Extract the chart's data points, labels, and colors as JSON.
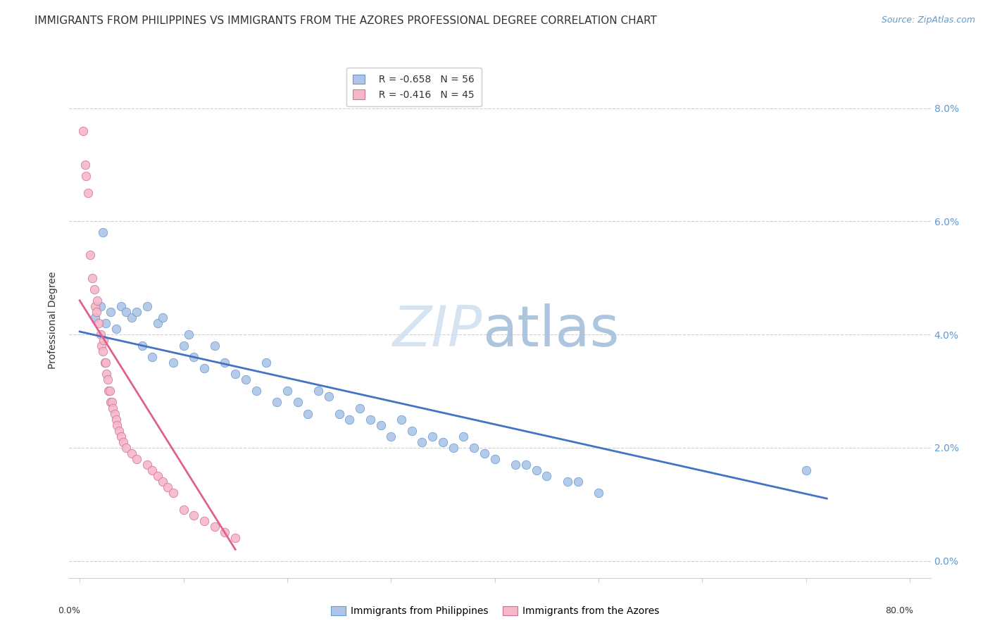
{
  "title": "IMMIGRANTS FROM PHILIPPINES VS IMMIGRANTS FROM THE AZORES PROFESSIONAL DEGREE CORRELATION CHART",
  "source": "Source: ZipAtlas.com",
  "ylabel": "Professional Degree",
  "legend_blue_r": "R = -0.658",
  "legend_blue_n": "N = 56",
  "legend_pink_r": "R = -0.416",
  "legend_pink_n": "N = 45",
  "legend_label_blue": "Immigrants from Philippines",
  "legend_label_pink": "Immigrants from the Azores",
  "blue_scatter_x": [
    1.5,
    2.0,
    2.2,
    2.5,
    3.0,
    3.5,
    4.0,
    4.5,
    5.0,
    5.5,
    6.0,
    6.5,
    7.0,
    7.5,
    8.0,
    9.0,
    10.0,
    10.5,
    11.0,
    12.0,
    13.0,
    14.0,
    15.0,
    16.0,
    17.0,
    18.0,
    19.0,
    20.0,
    21.0,
    22.0,
    23.0,
    24.0,
    25.0,
    26.0,
    27.0,
    28.0,
    29.0,
    30.0,
    31.0,
    32.0,
    33.0,
    34.0,
    35.0,
    36.0,
    37.0,
    38.0,
    39.0,
    40.0,
    42.0,
    43.0,
    44.0,
    45.0,
    47.0,
    48.0,
    50.0,
    70.0
  ],
  "blue_scatter_y": [
    4.3,
    4.5,
    5.8,
    4.2,
    4.4,
    4.1,
    4.5,
    4.4,
    4.3,
    4.4,
    3.8,
    4.5,
    3.6,
    4.2,
    4.3,
    3.5,
    3.8,
    4.0,
    3.6,
    3.4,
    3.8,
    3.5,
    3.3,
    3.2,
    3.0,
    3.5,
    2.8,
    3.0,
    2.8,
    2.6,
    3.0,
    2.9,
    2.6,
    2.5,
    2.7,
    2.5,
    2.4,
    2.2,
    2.5,
    2.3,
    2.1,
    2.2,
    2.1,
    2.0,
    2.2,
    2.0,
    1.9,
    1.8,
    1.7,
    1.7,
    1.6,
    1.5,
    1.4,
    1.4,
    1.2,
    1.6
  ],
  "pink_scatter_x": [
    0.3,
    0.5,
    0.6,
    0.8,
    1.0,
    1.2,
    1.4,
    1.5,
    1.6,
    1.7,
    1.8,
    2.0,
    2.1,
    2.2,
    2.3,
    2.4,
    2.5,
    2.6,
    2.7,
    2.8,
    2.9,
    3.0,
    3.1,
    3.2,
    3.4,
    3.5,
    3.6,
    3.8,
    4.0,
    4.2,
    4.5,
    5.0,
    5.5,
    6.5,
    7.0,
    7.5,
    8.0,
    8.5,
    9.0,
    10.0,
    11.0,
    12.0,
    13.0,
    14.0,
    15.0
  ],
  "pink_scatter_y": [
    7.6,
    7.0,
    6.8,
    6.5,
    5.4,
    5.0,
    4.8,
    4.5,
    4.4,
    4.6,
    4.2,
    4.0,
    3.8,
    3.7,
    3.9,
    3.5,
    3.5,
    3.3,
    3.2,
    3.0,
    3.0,
    2.8,
    2.8,
    2.7,
    2.6,
    2.5,
    2.4,
    2.3,
    2.2,
    2.1,
    2.0,
    1.9,
    1.8,
    1.7,
    1.6,
    1.5,
    1.4,
    1.3,
    1.2,
    0.9,
    0.8,
    0.7,
    0.6,
    0.5,
    0.4
  ],
  "blue_line_x": [
    0.0,
    72.0
  ],
  "blue_line_y": [
    4.05,
    1.1
  ],
  "pink_line_x": [
    0.0,
    15.0
  ],
  "pink_line_y": [
    4.6,
    0.2
  ],
  "xlim": [
    -1.0,
    82.0
  ],
  "ylim": [
    -0.3,
    8.8
  ],
  "x_tick_positions": [
    0,
    10,
    20,
    30,
    40,
    50,
    60,
    70,
    80
  ],
  "y_tick_positions": [
    0,
    2,
    4,
    6,
    8
  ],
  "y_tick_labels": [
    "0.0%",
    "2.0%",
    "4.0%",
    "6.0%",
    "8.0%"
  ],
  "background_color": "#ffffff",
  "blue_scatter_color": "#adc6e8",
  "blue_edge_color": "#6699cc",
  "blue_line_color": "#4472c4",
  "pink_scatter_color": "#f5b8c8",
  "pink_edge_color": "#d070a0",
  "pink_line_color": "#e06090",
  "grid_color": "#d0d0d0",
  "title_color": "#333333",
  "source_color": "#5b9bd5",
  "right_tick_color": "#5b9bd5",
  "title_fontsize": 11,
  "scatter_size": 80,
  "watermark_zip_color": "#cfe0f0",
  "watermark_atlas_color": "#a0bcd8"
}
